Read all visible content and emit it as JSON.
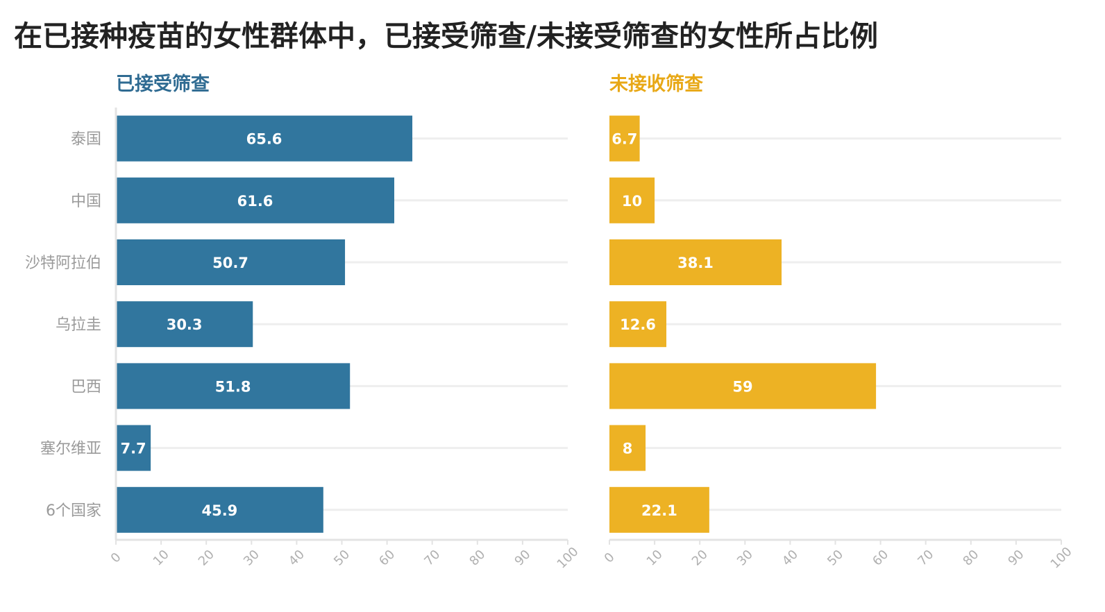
{
  "title": "在已接种疫苗的女性群体中，已接受筛查/未接受筛查的女性所占比例",
  "colors": {
    "screened": "#31769e",
    "unscreened": "#edb224",
    "grid": "#eeeeee",
    "axis": "#e3e3e3"
  },
  "chart_data": [
    {
      "type": "bar",
      "orientation": "horizontal",
      "title": "已接受筛查",
      "title_color": "#2f6b92",
      "color": "#31769e",
      "categories": [
        "泰国",
        "中国",
        "沙特阿拉伯",
        "乌拉圭",
        "巴西",
        "塞尔维亚",
        "6个国家"
      ],
      "values": [
        65.6,
        61.6,
        50.7,
        30.3,
        51.8,
        7.7,
        45.9
      ],
      "value_labels": [
        "65.6",
        "61.6",
        "50.7",
        "30.3",
        "51.8",
        "7.7",
        "45.9"
      ],
      "xlim": [
        0,
        100
      ],
      "xticks": [
        0,
        10,
        20,
        30,
        40,
        50,
        60,
        70,
        80,
        90,
        100
      ],
      "xtick_labels": [
        "0",
        "10",
        "20",
        "30",
        "40",
        "50",
        "60",
        "70",
        "80",
        "90",
        "100"
      ],
      "grid": true
    },
    {
      "type": "bar",
      "orientation": "horizontal",
      "title": "未接收筛查",
      "title_color": "#e8a816",
      "color": "#edb224",
      "categories": [
        "泰国",
        "中国",
        "沙特阿拉伯",
        "乌拉圭",
        "巴西",
        "塞尔维亚",
        "6个国家"
      ],
      "values": [
        6.7,
        10,
        38.1,
        12.6,
        59,
        8,
        22.1
      ],
      "value_labels": [
        "6.7",
        "10",
        "38.1",
        "12.6",
        "59",
        "8",
        "22.1"
      ],
      "xlim": [
        0,
        100
      ],
      "xticks": [
        0,
        10,
        20,
        30,
        40,
        50,
        60,
        70,
        80,
        90,
        100
      ],
      "xtick_labels": [
        "0",
        "10",
        "20",
        "30",
        "40",
        "50",
        "60",
        "70",
        "80",
        "90",
        "100"
      ],
      "grid": true
    }
  ]
}
